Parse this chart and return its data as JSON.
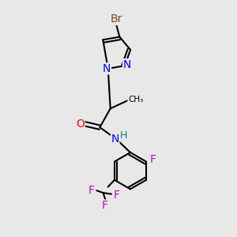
{
  "background_color": "#e8e8e8",
  "atom_colors": {
    "Br": "#8B4513",
    "N": "#0000FF",
    "O": "#FF0000",
    "F": "#CC00CC",
    "C": "#000000",
    "H": "#008080"
  },
  "bond_width": 1.5,
  "font_size": 10
}
